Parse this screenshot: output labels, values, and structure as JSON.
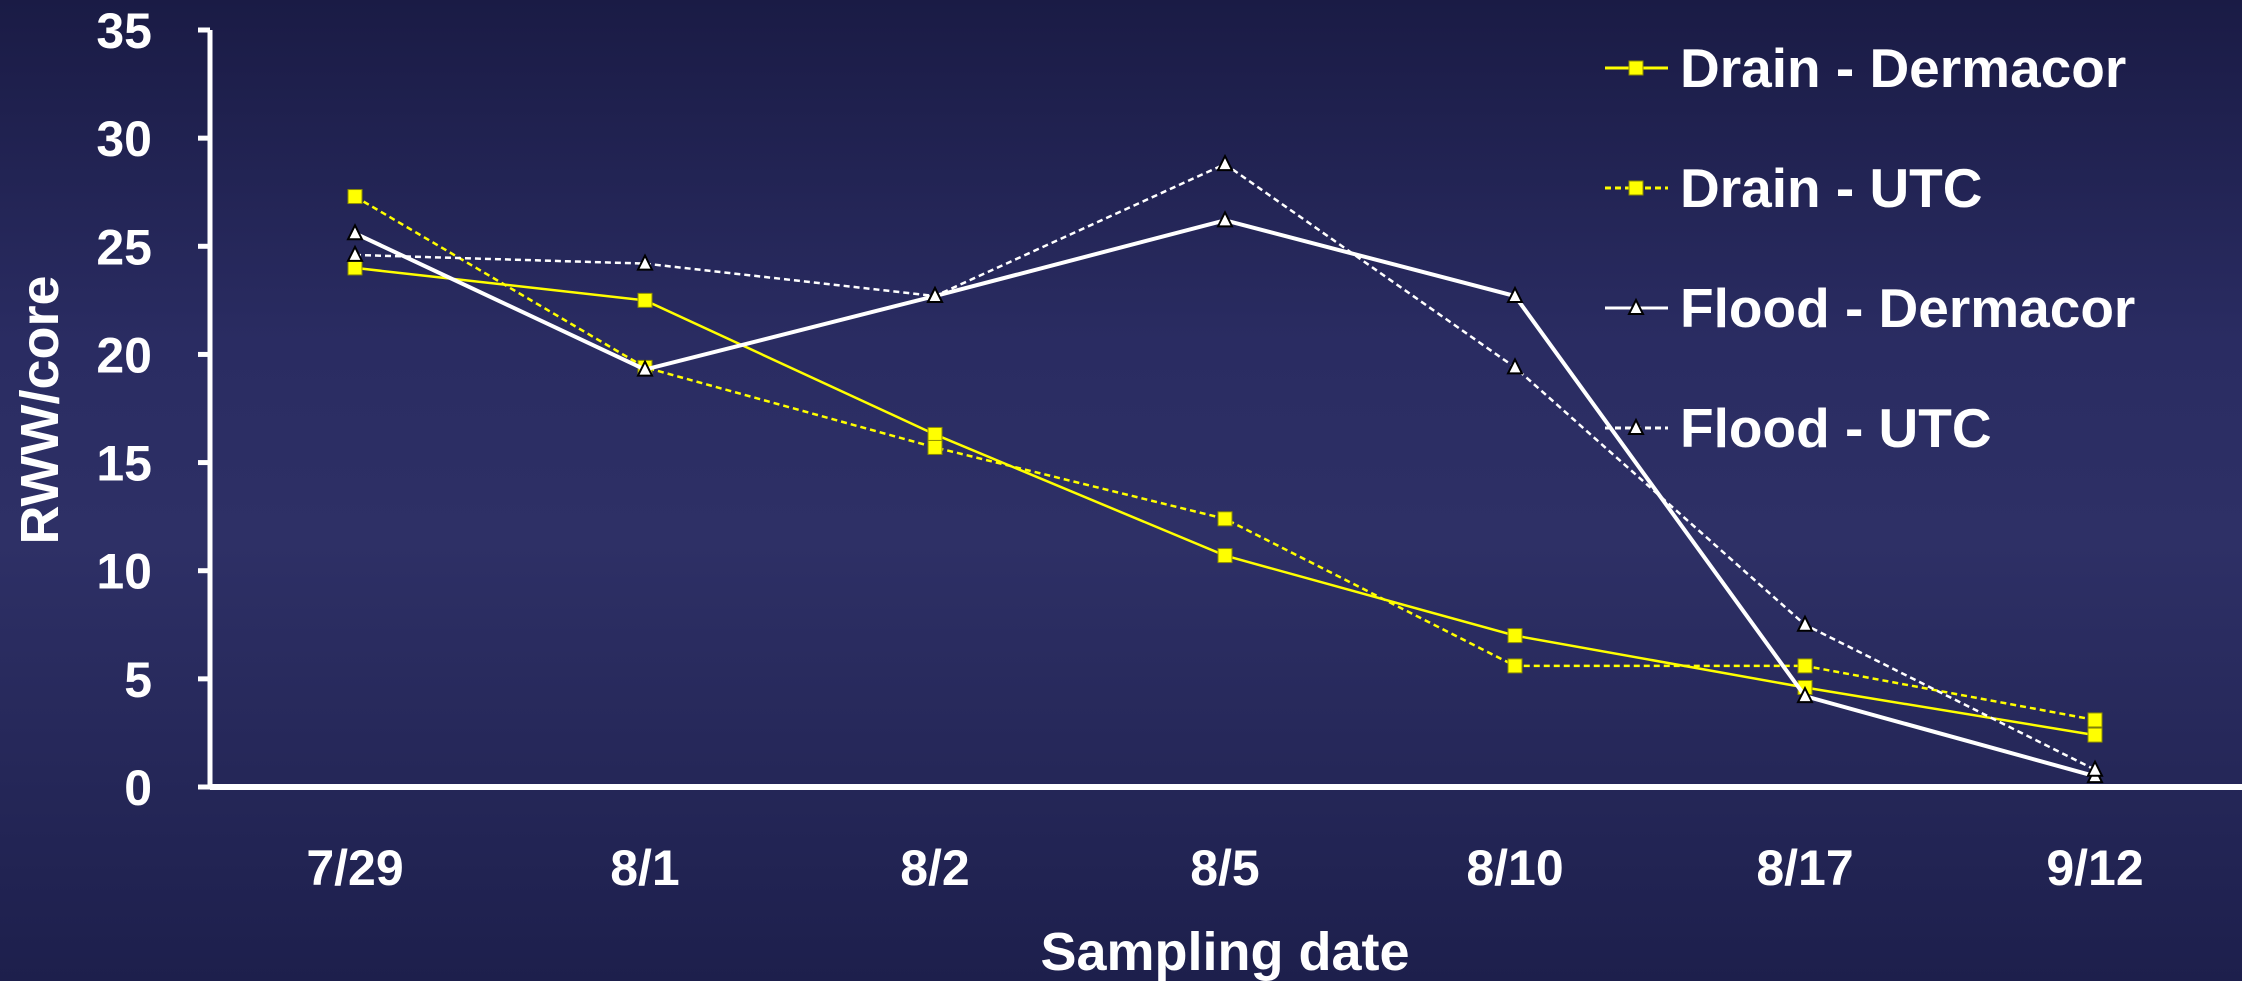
{
  "chart_data": {
    "type": "line",
    "title": "",
    "xlabel": "Sampling date",
    "ylabel": "RWW/core",
    "categories": [
      "7/29",
      "8/1",
      "8/2",
      "8/5",
      "8/10",
      "8/17",
      "9/12"
    ],
    "ylim": [
      0,
      35
    ],
    "yticks": [
      0,
      5,
      10,
      15,
      20,
      25,
      30,
      35
    ],
    "grid": false,
    "legend_position": "top-right",
    "series": [
      {
        "name": "Drain - Dermacor",
        "values": [
          24.0,
          22.5,
          16.3,
          10.7,
          7.0,
          4.6,
          2.4
        ],
        "color": "#ffff00",
        "dash": "solid",
        "marker": "square",
        "marker_fill": "#ffff00"
      },
      {
        "name": "Drain - UTC",
        "values": [
          27.3,
          19.4,
          15.7,
          12.4,
          5.6,
          5.6,
          3.1
        ],
        "color": "#ffff00",
        "dash": "dashed",
        "marker": "square",
        "marker_fill": "#ffff00"
      },
      {
        "name": "Flood - Dermacor",
        "values": [
          25.6,
          19.3,
          22.7,
          26.2,
          22.7,
          4.2,
          0.5
        ],
        "color": "#ffffff",
        "dash": "solid",
        "marker": "triangle",
        "marker_fill": "#ffffff"
      },
      {
        "name": "Flood - UTC",
        "values": [
          24.6,
          24.2,
          22.7,
          28.8,
          19.4,
          7.5,
          0.8
        ],
        "color": "#ffffff",
        "dash": "dashed",
        "marker": "triangle",
        "marker_fill": "#ffffff"
      }
    ]
  }
}
